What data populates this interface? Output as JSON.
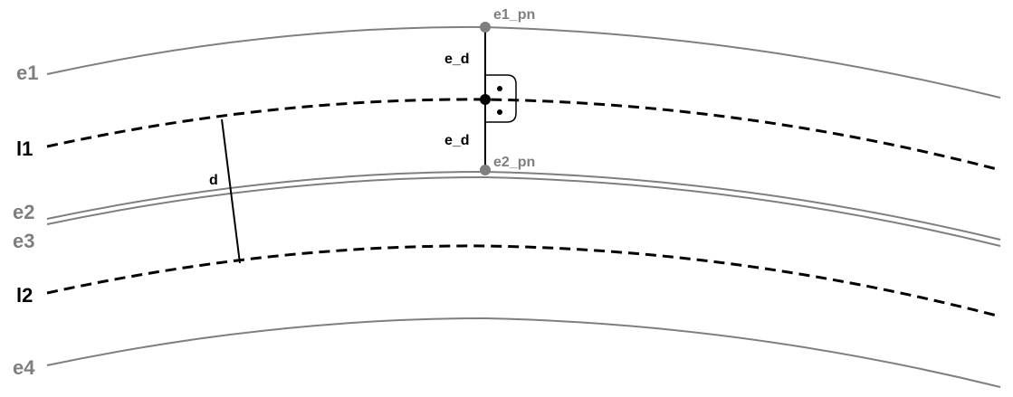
{
  "labels": {
    "e1": "e1",
    "l1": "l1",
    "e2": "e2",
    "e3": "e3",
    "l2": "l2",
    "e4": "e4",
    "e1_pn": "e1_pn",
    "e2_pn": "e2_pn",
    "e_d_top": "e_d",
    "e_d_bottom": "e_d",
    "d": "d"
  },
  "colors": {
    "edge": "#7f7f7f",
    "lane": "#000000",
    "point_gray": "#7f7f7f",
    "point_black": "#000000"
  }
}
